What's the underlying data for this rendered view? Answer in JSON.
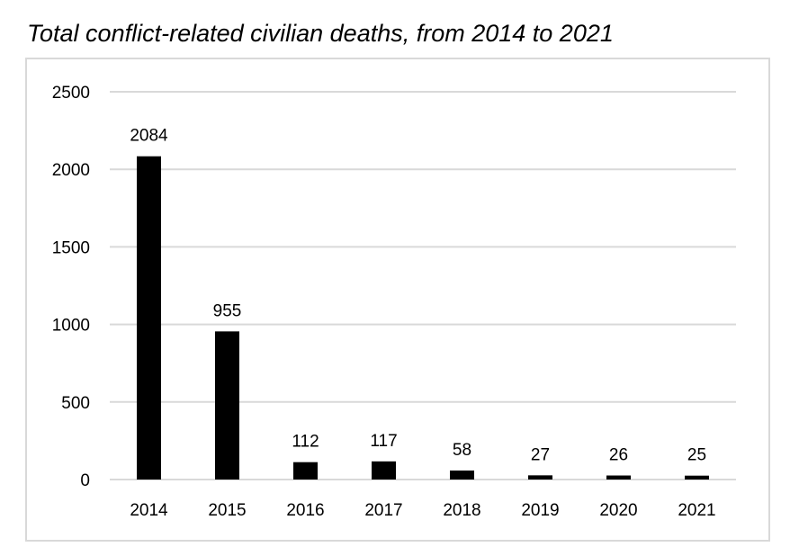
{
  "chart_data": {
    "type": "bar",
    "title": "Total conflict-related civilian deaths, from 2014 to 2021",
    "categories": [
      "2014",
      "2015",
      "2016",
      "2017",
      "2018",
      "2019",
      "2020",
      "2021"
    ],
    "values": [
      2084,
      955,
      112,
      117,
      58,
      27,
      26,
      25
    ],
    "data_labels": [
      "2084",
      "955",
      "112",
      "117",
      "58",
      "27",
      "26",
      "25"
    ],
    "y_ticks": [
      "0",
      "500",
      "1000",
      "1500",
      "2000",
      "2500"
    ],
    "ylim": [
      0,
      2500
    ],
    "xlabel": "",
    "ylabel": "",
    "grid": true,
    "legend": "none",
    "bar_color": "#000000",
    "grid_color": "#d9d9d9"
  }
}
